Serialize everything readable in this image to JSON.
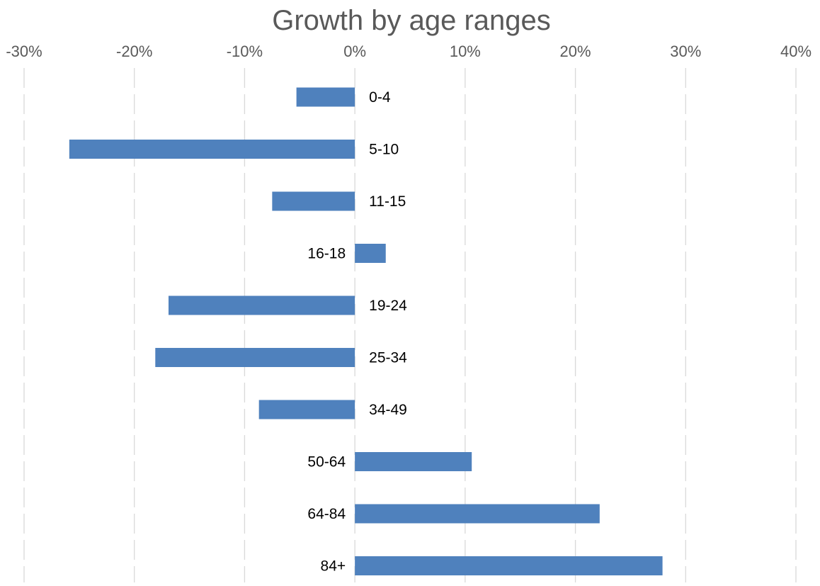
{
  "chart_data": {
    "type": "bar",
    "orientation": "horizontal",
    "title": "Growth by age ranges",
    "xlabel": "",
    "ylabel": "",
    "categories": [
      "0-4",
      "5-10",
      "11-15",
      "16-18",
      "19-24",
      "25-34",
      "34-49",
      "50-64",
      "64-84",
      "84+"
    ],
    "values": [
      -5.3,
      -25.9,
      -7.5,
      2.8,
      -16.9,
      -18.1,
      -8.7,
      10.6,
      22.2,
      27.9
    ],
    "value_format": "percent",
    "xlim": [
      -30,
      40
    ],
    "x_ticks": [
      "-30%",
      "-20%",
      "-10%",
      "0%",
      "10%",
      "20%",
      "30%",
      "40%"
    ],
    "grid": "vertical-dashed",
    "legend": "none",
    "colors": {
      "bar": "#4f81bd",
      "grid": "#d9d9d9",
      "tick_text": "#595959",
      "label_text": "#000000",
      "title_text": "#595959"
    }
  }
}
